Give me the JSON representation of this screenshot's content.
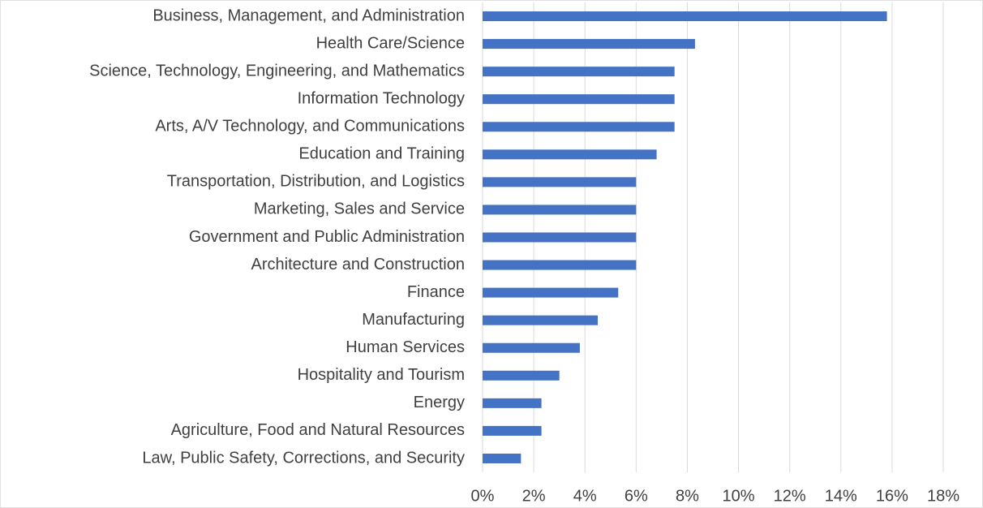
{
  "chart_data": {
    "type": "hbar",
    "categories": [
      "Business, Management, and Administration",
      "Health Care/Science",
      "Science, Technology, Engineering, and Mathematics",
      "Information Technology",
      "Arts, A/V Technology, and Communications",
      "Education and Training",
      "Transportation, Distribution, and Logistics",
      "Marketing, Sales and Service",
      "Government and Public Administration",
      "Architecture and Construction",
      "Finance",
      "Manufacturing",
      "Human Services",
      "Hospitality and Tourism",
      "Energy",
      "Agriculture, Food and Natural Resources",
      "Law, Public Safety, Corrections, and Security"
    ],
    "values": [
      15.8,
      8.3,
      7.5,
      7.5,
      7.5,
      6.8,
      6.0,
      6.0,
      6.0,
      6.0,
      5.3,
      4.5,
      3.8,
      3.0,
      2.3,
      2.3,
      1.5
    ],
    "color": "#4472c4",
    "xlim": [
      0,
      18
    ],
    "xticks": [
      {
        "value": 0,
        "label": "0%"
      },
      {
        "value": 2,
        "label": "2%"
      },
      {
        "value": 4,
        "label": "4%"
      },
      {
        "value": 6,
        "label": "6%"
      },
      {
        "value": 8,
        "label": "8%"
      },
      {
        "value": 10,
        "label": "10%"
      },
      {
        "value": 12,
        "label": "12%"
      },
      {
        "value": 14,
        "label": "14%"
      },
      {
        "value": 16,
        "label": "16%"
      },
      {
        "value": 18,
        "label": "18%"
      }
    ],
    "grid": true
  }
}
